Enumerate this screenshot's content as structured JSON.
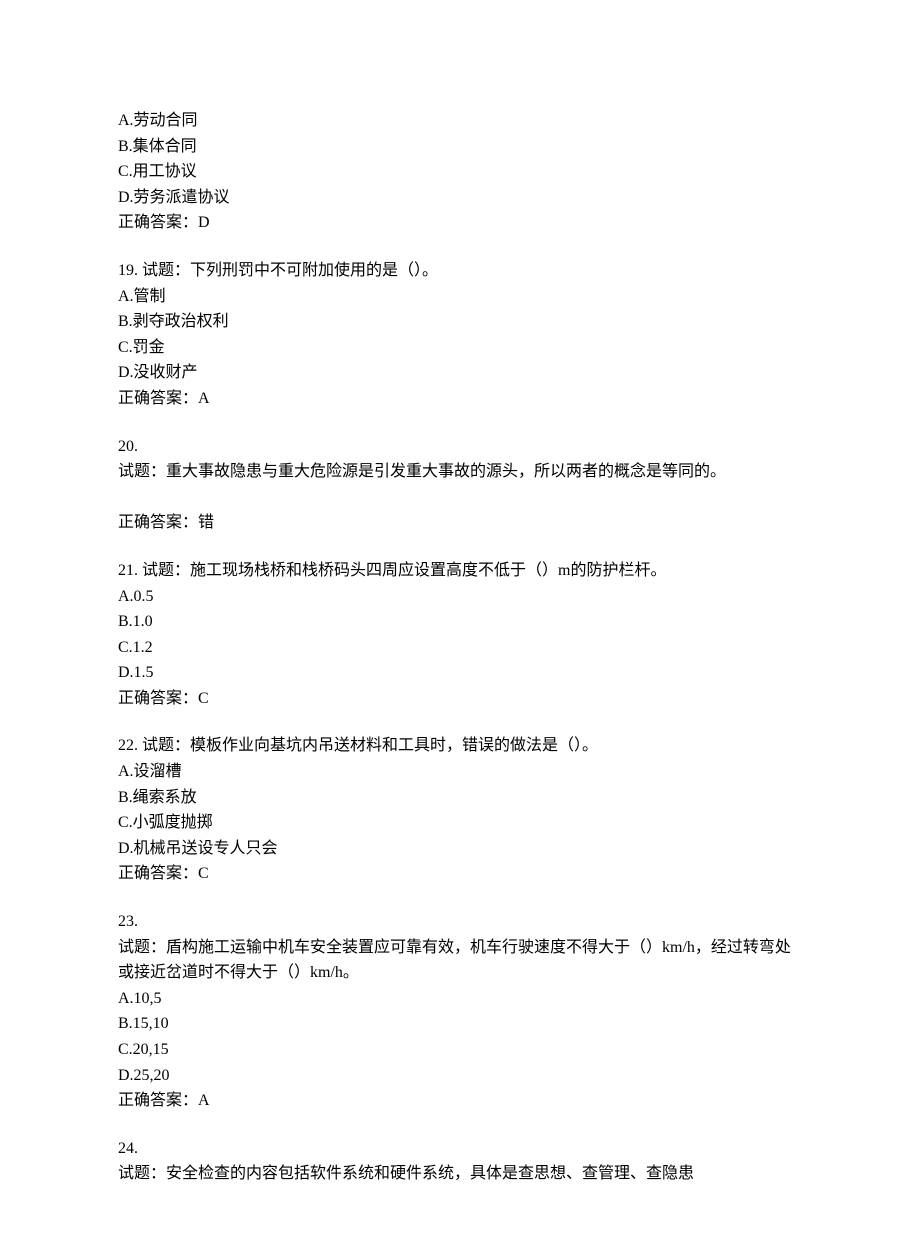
{
  "q18_partial": {
    "options": [
      "A.劳动合同",
      "B.集体合同",
      "C.用工协议",
      "D.劳务派遣协议"
    ],
    "answer": "正确答案：D"
  },
  "q19": {
    "title": "19. 试题：下列刑罚中不可附加使用的是（）。",
    "options": [
      "A.管制",
      "B.剥夺政治权利",
      "C.罚金",
      "D.没收财产"
    ],
    "answer": "正确答案：A"
  },
  "q20": {
    "number": "20.",
    "title": "试题：重大事故隐患与重大危险源是引发重大事故的源头，所以两者的概念是等同的。",
    "answer": "正确答案：错"
  },
  "q21": {
    "title": "21. 试题：施工现场栈桥和栈桥码头四周应设置高度不低于（）m的防护栏杆。",
    "options": [
      "A.0.5",
      "B.1.0",
      "C.1.2",
      "D.1.5"
    ],
    "answer": "正确答案：C"
  },
  "q22": {
    "title": "22. 试题：模板作业向基坑内吊送材料和工具时，错误的做法是（）。",
    "options": [
      "A.设溜槽",
      "B.绳索系放",
      "C.小弧度抛掷",
      "D.机械吊送设专人只会"
    ],
    "answer": "正确答案：C"
  },
  "q23": {
    "number": "23.",
    "title": "试题：盾构施工运输中机车安全装置应可靠有效，机车行驶速度不得大于（）km/h，经过转弯处或接近岔道时不得大于（）km/h。",
    "options": [
      "A.10,5",
      "B.15,10",
      "C.20,15",
      "D.25,20"
    ],
    "answer": "正确答案：A"
  },
  "q24": {
    "number": "24.",
    "title": "试题：安全检查的内容包括软件系统和硬件系统，具体是查思想、查管理、查隐患"
  }
}
